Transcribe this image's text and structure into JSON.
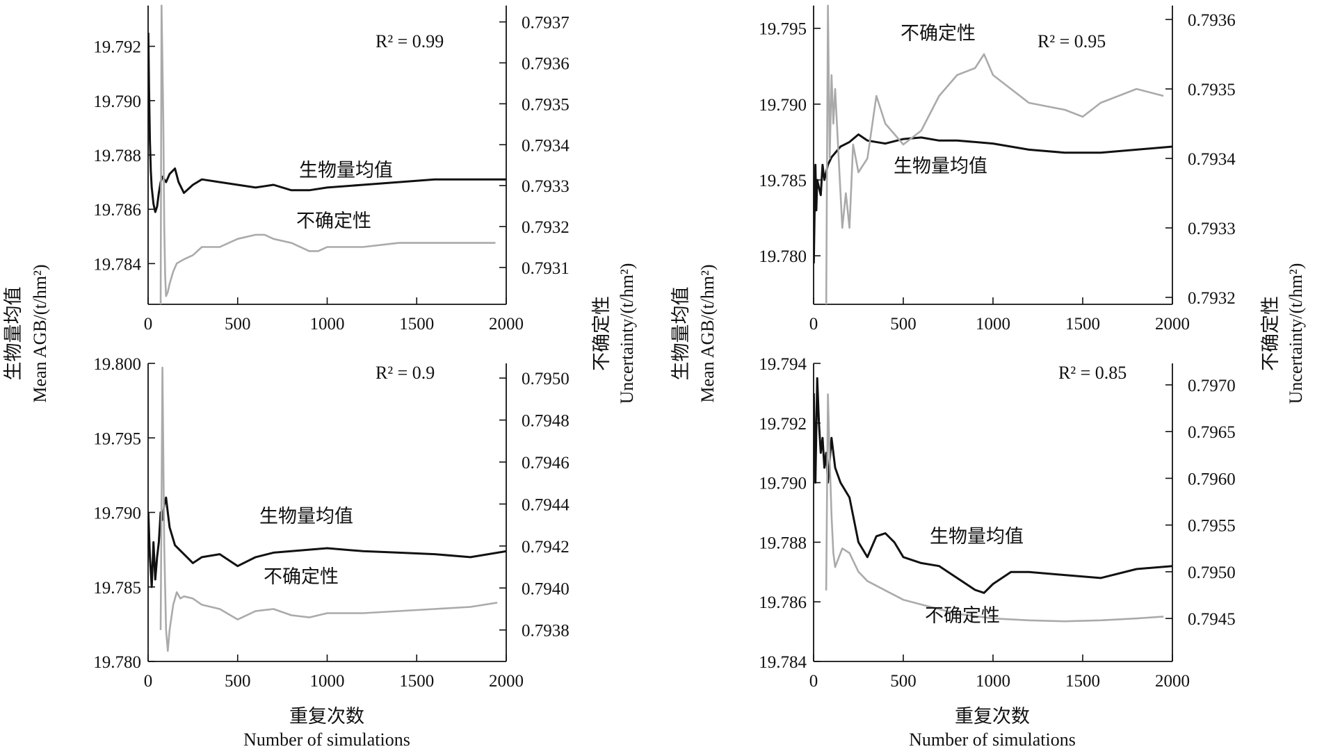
{
  "figure": {
    "x_axis_label_cn": "重复次数",
    "x_axis_label_en": "Number of simulations",
    "left_axis_label_cn": "生物量均值",
    "left_axis_label_en": "Mean AGB/(t/hm²)",
    "right_axis_label_cn": "不确定性",
    "right_axis_label_en": "Uncertainty/(t/hm²)",
    "series_label_mean": "生物量均值",
    "series_label_uncertainty": "不确定性",
    "colors": {
      "mean": "#111111",
      "uncertainty": "#aaaaaa",
      "axis": "#111111"
    }
  },
  "chart_data": [
    {
      "type": "line",
      "r2": "R² = 0.99",
      "xlim": [
        0,
        2000
      ],
      "xticks": [
        "0",
        "500",
        "1000",
        "1500",
        "2000"
      ],
      "ylim_left": [
        19.7825,
        19.7935
      ],
      "yticks_left": [
        "19.784",
        "19.786",
        "19.788",
        "19.790",
        "19.792"
      ],
      "ylim_right": [
        0.79301,
        0.79374
      ],
      "yticks_right": [
        "0.7931",
        "0.7932",
        "0.7933",
        "0.7934",
        "0.7935",
        "0.7936",
        "0.7937"
      ],
      "series": [
        {
          "name": "生物量均值",
          "axis": "left",
          "x": [
            1,
            5,
            10,
            15,
            20,
            30,
            40,
            50,
            60,
            70,
            80,
            100,
            120,
            150,
            170,
            200,
            250,
            300,
            400,
            500,
            600,
            700,
            800,
            900,
            1000,
            1200,
            1400,
            1600,
            1800,
            2000
          ],
          "y": [
            19.7925,
            19.7905,
            19.7885,
            19.7874,
            19.7868,
            19.7862,
            19.7859,
            19.7861,
            19.7866,
            19.787,
            19.7872,
            19.787,
            19.7873,
            19.7875,
            19.787,
            19.7866,
            19.7869,
            19.7871,
            19.787,
            19.7869,
            19.7868,
            19.7869,
            19.7867,
            19.7867,
            19.7868,
            19.7869,
            19.787,
            19.7871,
            19.7871,
            19.7871
          ]
        },
        {
          "name": "不确定性",
          "axis": "right",
          "x": [
            70,
            75,
            80,
            85,
            90,
            95,
            100,
            110,
            120,
            140,
            160,
            200,
            250,
            300,
            400,
            500,
            600,
            650,
            700,
            800,
            900,
            950,
            1000,
            1200,
            1400,
            1600,
            1800,
            1900,
            1940
          ],
          "y": [
            0.793,
            0.79374,
            0.7936,
            0.79345,
            0.7932,
            0.79308,
            0.79303,
            0.79304,
            0.79306,
            0.79309,
            0.79311,
            0.79312,
            0.79313,
            0.79315,
            0.79315,
            0.79317,
            0.79318,
            0.79318,
            0.79317,
            0.79316,
            0.79314,
            0.79314,
            0.79315,
            0.79315,
            0.79316,
            0.79316,
            0.79316,
            0.79316,
            0.79316
          ]
        }
      ]
    },
    {
      "type": "line",
      "r2": "R² = 0.95",
      "xlim": [
        0,
        2000
      ],
      "xticks": [
        "0",
        "500",
        "1000",
        "1500",
        "2000"
      ],
      "ylim_left": [
        19.7768,
        19.7965
      ],
      "yticks_left": [
        "19.780",
        "19.785",
        "19.790",
        "19.795"
      ],
      "ylim_right": [
        0.79319,
        0.79362
      ],
      "yticks_right": [
        "0.7932",
        "0.7933",
        "0.7934",
        "0.7935",
        "0.7936"
      ],
      "series": [
        {
          "name": "生物量均值",
          "axis": "left",
          "x": [
            1,
            5,
            10,
            15,
            20,
            30,
            40,
            50,
            60,
            80,
            100,
            150,
            200,
            250,
            300,
            400,
            500,
            600,
            700,
            800,
            900,
            1000,
            1200,
            1400,
            1600,
            1800,
            2000
          ],
          "y": [
            19.7795,
            19.7825,
            19.786,
            19.783,
            19.785,
            19.7845,
            19.784,
            19.786,
            19.785,
            19.786,
            19.7865,
            19.7872,
            19.7875,
            19.788,
            19.7876,
            19.7874,
            19.7877,
            19.7878,
            19.7876,
            19.7876,
            19.7875,
            19.7874,
            19.787,
            19.7868,
            19.7868,
            19.787,
            19.7872
          ]
        },
        {
          "name": "不确定性",
          "axis": "right",
          "x": [
            70,
            80,
            90,
            100,
            110,
            120,
            140,
            160,
            180,
            200,
            220,
            250,
            300,
            350,
            400,
            500,
            600,
            700,
            800,
            900,
            950,
            1000,
            1100,
            1200,
            1400,
            1500,
            1600,
            1800,
            1950
          ],
          "y": [
            0.79318,
            0.79362,
            0.7934,
            0.79352,
            0.79345,
            0.7935,
            0.7934,
            0.7933,
            0.79335,
            0.7933,
            0.79342,
            0.79338,
            0.7934,
            0.79349,
            0.79345,
            0.79342,
            0.79344,
            0.79349,
            0.79352,
            0.79353,
            0.79355,
            0.79352,
            0.7935,
            0.79348,
            0.79347,
            0.79346,
            0.79348,
            0.7935,
            0.79349
          ]
        }
      ]
    },
    {
      "type": "line",
      "r2": "R² = 0.9",
      "xlim": [
        0,
        2000
      ],
      "xticks": [
        "0",
        "500",
        "1000",
        "1500",
        "2000"
      ],
      "ylim_left": [
        19.78,
        19.8
      ],
      "yticks_left": [
        "19.780",
        "19.785",
        "19.790",
        "19.795",
        "19.800"
      ],
      "ylim_right": [
        0.79365,
        0.79507
      ],
      "yticks_right": [
        "0.7938",
        "0.7940",
        "0.7942",
        "0.7944",
        "0.7946",
        "0.7948",
        "0.7950"
      ],
      "series": [
        {
          "name": "生物量均值",
          "axis": "left",
          "x": [
            1,
            10,
            20,
            30,
            40,
            50,
            60,
            70,
            80,
            90,
            100,
            110,
            120,
            150,
            200,
            250,
            300,
            400,
            500,
            600,
            700,
            800,
            900,
            1000,
            1200,
            1400,
            1600,
            1800,
            2000
          ],
          "y": [
            19.79,
            19.787,
            19.785,
            19.788,
            19.7855,
            19.787,
            19.788,
            19.79,
            19.7895,
            19.7905,
            19.791,
            19.79,
            19.789,
            19.7878,
            19.7872,
            19.7866,
            19.787,
            19.7872,
            19.7864,
            19.787,
            19.7873,
            19.7874,
            19.7875,
            19.7876,
            19.7874,
            19.7873,
            19.7872,
            19.787,
            19.7874
          ]
        },
        {
          "name": "不确定性",
          "axis": "right",
          "x": [
            70,
            80,
            90,
            100,
            110,
            120,
            140,
            160,
            180,
            200,
            250,
            300,
            400,
            500,
            600,
            700,
            800,
            900,
            1000,
            1200,
            1400,
            1600,
            1800,
            1950
          ],
          "y": [
            0.7938,
            0.79505,
            0.7942,
            0.7938,
            0.7937,
            0.7938,
            0.79392,
            0.79398,
            0.79395,
            0.79396,
            0.79395,
            0.79392,
            0.7939,
            0.79385,
            0.79389,
            0.7939,
            0.79387,
            0.79386,
            0.79388,
            0.79388,
            0.79389,
            0.7939,
            0.79391,
            0.79393
          ]
        }
      ]
    },
    {
      "type": "line",
      "r2": "R² = 0.85",
      "xlim": [
        0,
        2000
      ],
      "xticks": [
        "0",
        "500",
        "1000",
        "1500",
        "2000"
      ],
      "ylim_left": [
        19.784,
        19.794
      ],
      "yticks_left": [
        "19.784",
        "19.786",
        "19.788",
        "19.790",
        "19.792",
        "19.794"
      ],
      "ylim_right": [
        0.79404,
        0.79723
      ],
      "yticks_right": [
        "0.7945",
        "0.7950",
        "0.7955",
        "0.7960",
        "0.7965",
        "0.7970"
      ],
      "series": [
        {
          "name": "生物量均值",
          "axis": "left",
          "x": [
            1,
            10,
            20,
            30,
            40,
            50,
            60,
            70,
            80,
            100,
            120,
            150,
            200,
            250,
            300,
            350,
            400,
            450,
            500,
            600,
            700,
            800,
            900,
            950,
            1000,
            1100,
            1200,
            1400,
            1600,
            1800,
            2000
          ],
          "y": [
            19.793,
            19.79,
            19.7935,
            19.792,
            19.791,
            19.7915,
            19.7905,
            19.791,
            19.79,
            19.7915,
            19.7905,
            19.79,
            19.7895,
            19.788,
            19.7875,
            19.7882,
            19.7883,
            19.788,
            19.7875,
            19.7873,
            19.7872,
            19.7868,
            19.7864,
            19.7863,
            19.7866,
            19.787,
            19.787,
            19.7869,
            19.7868,
            19.7871,
            19.7872
          ]
        },
        {
          "name": "不确定性",
          "axis": "right",
          "x": [
            70,
            80,
            90,
            100,
            110,
            120,
            140,
            160,
            200,
            250,
            300,
            400,
            500,
            600,
            700,
            800,
            1000,
            1200,
            1400,
            1600,
            1800,
            1950
          ],
          "y": [
            0.7948,
            0.7969,
            0.7962,
            0.7956,
            0.7952,
            0.79505,
            0.79515,
            0.79525,
            0.7952,
            0.795,
            0.7949,
            0.7948,
            0.7947,
            0.79465,
            0.7946,
            0.79455,
            0.7945,
            0.79448,
            0.79447,
            0.79448,
            0.7945,
            0.79452
          ]
        }
      ]
    }
  ]
}
